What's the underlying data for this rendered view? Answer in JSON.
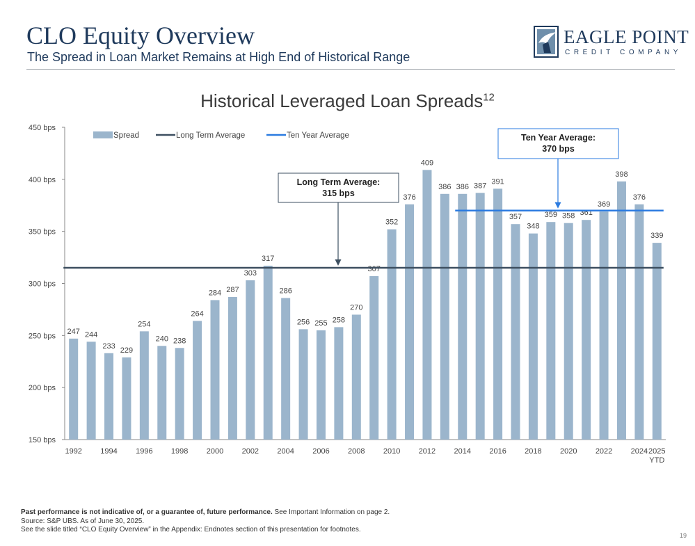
{
  "header": {
    "title": "CLO Equity Overview",
    "subtitle": "The Spread in Loan Market Remains at High End of Historical Range"
  },
  "logo": {
    "name": "EAGLE POINT",
    "tagline": "CREDIT COMPANY"
  },
  "chart_title": {
    "text": "Historical Leveraged Loan Spreads",
    "superscript": "12"
  },
  "chart_data": {
    "type": "bar",
    "title": "Historical Leveraged Loan Spreads",
    "categories": [
      "1992",
      "1993",
      "1994",
      "1995",
      "1996",
      "1997",
      "1998",
      "1999",
      "2000",
      "2001",
      "2002",
      "2003",
      "2004",
      "2005",
      "2006",
      "2007",
      "2008",
      "2009",
      "2010",
      "2011",
      "2012",
      "2013",
      "2014",
      "2015",
      "2016",
      "2017",
      "2018",
      "2019",
      "2020",
      "2021",
      "2022",
      "2023",
      "2024",
      "2025 YTD"
    ],
    "x_tick_labels": [
      {
        "year": "1992",
        "label": "1992"
      },
      {
        "year": "1994",
        "label": "1994"
      },
      {
        "year": "1996",
        "label": "1996"
      },
      {
        "year": "1998",
        "label": "1998"
      },
      {
        "year": "2000",
        "label": "2000"
      },
      {
        "year": "2002",
        "label": "2002"
      },
      {
        "year": "2004",
        "label": "2004"
      },
      {
        "year": "2006",
        "label": "2006"
      },
      {
        "year": "2008",
        "label": "2008"
      },
      {
        "year": "2010",
        "label": "2010"
      },
      {
        "year": "2012",
        "label": "2012"
      },
      {
        "year": "2014",
        "label": "2014"
      },
      {
        "year": "2016",
        "label": "2016"
      },
      {
        "year": "2018",
        "label": "2018"
      },
      {
        "year": "2020",
        "label": "2020"
      },
      {
        "year": "2022",
        "label": "2022"
      },
      {
        "year": "2024",
        "label": "2024"
      },
      {
        "year": "2025 YTD",
        "label": "2025",
        "label2": "YTD"
      }
    ],
    "series": [
      {
        "name": "Spread",
        "color": "#9bb5cc",
        "values": [
          247,
          244,
          233,
          229,
          254,
          240,
          238,
          264,
          284,
          287,
          303,
          317,
          286,
          256,
          255,
          258,
          270,
          307,
          352,
          376,
          409,
          386,
          386,
          387,
          391,
          357,
          348,
          359,
          358,
          361,
          369,
          398,
          376,
          339
        ]
      }
    ],
    "reference_lines": [
      {
        "name": "Long Term Average",
        "value": 315,
        "color": "#3d4f60",
        "from": "1992",
        "to": "2025 YTD"
      },
      {
        "name": "Ten Year Average",
        "value": 370,
        "color": "#2b7be0",
        "from": "2014",
        "to": "2025 YTD"
      }
    ],
    "annotations": [
      {
        "line1": "Long Term Average:",
        "line2": "315 bps",
        "points_to": "Long Term Average"
      },
      {
        "line1": "Ten Year Average:",
        "line2": "370 bps",
        "points_to": "Ten Year Average"
      }
    ],
    "y_ticks": [
      {
        "value": 150,
        "label": "150 bps"
      },
      {
        "value": 200,
        "label": "200 bps"
      },
      {
        "value": 250,
        "label": "250 bps"
      },
      {
        "value": 300,
        "label": "300 bps"
      },
      {
        "value": 350,
        "label": "350 bps"
      },
      {
        "value": 400,
        "label": "400 bps"
      },
      {
        "value": 450,
        "label": "450 bps"
      }
    ],
    "ylim": [
      150,
      450
    ],
    "grid": false,
    "legend": {
      "placement": "top-left",
      "entries": [
        {
          "label": "Spread",
          "style": "bar",
          "color": "#9bb5cc"
        },
        {
          "label": "Long Term Average",
          "style": "line",
          "color": "#3d4f60"
        },
        {
          "label": "Ten Year Average",
          "style": "line",
          "color": "#2b7be0"
        }
      ]
    }
  },
  "footnotes": {
    "disclaimer_bold": "Past performance is not indicative of, or a guarantee of, future performance.",
    "disclaimer_rest": " See Important Information on page 2.",
    "source": "Source: S&P UBS. As of June 30, 2025.",
    "endnote": "See the slide titled “CLO Equity Overview” in the Appendix: Endnotes section of this presentation for footnotes."
  },
  "page_number": "19"
}
